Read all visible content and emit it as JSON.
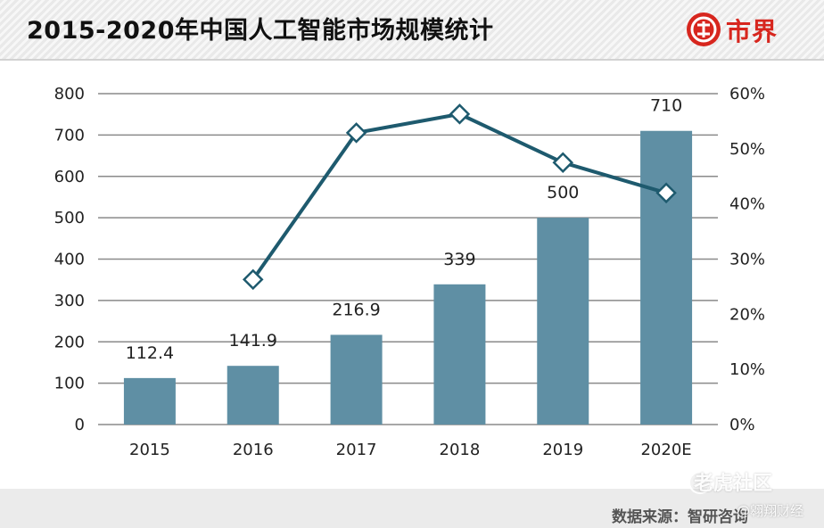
{
  "header": {
    "title": "2015-2020年中国人工智能市场规模统计",
    "logo_text": "市界",
    "logo_icon": "shijie-logo-icon"
  },
  "chart_data": {
    "type": "bar",
    "categories": [
      "2015",
      "2016",
      "2017",
      "2018",
      "2019",
      "2020E"
    ],
    "series": [
      {
        "type": "bar",
        "values": [
          112.4,
          141.9,
          216.9,
          339,
          500,
          710
        ],
        "data_labels": [
          "112.4",
          "141.9",
          "216.9",
          "339",
          "500",
          "710"
        ],
        "axis": "left"
      },
      {
        "type": "line",
        "values": [
          null,
          26.3,
          52.9,
          56.3,
          47.5,
          42.0
        ],
        "unit": "%",
        "axis": "right",
        "marker": "diamond"
      }
    ],
    "ylim": [
      0,
      800
    ],
    "y_ticks": [
      "0",
      "100",
      "200",
      "300",
      "400",
      "500",
      "600",
      "700",
      "800"
    ],
    "y2lim": [
      0,
      60
    ],
    "y2_ticks": [
      "0%",
      "10%",
      "20%",
      "30%",
      "40%",
      "50%",
      "60%"
    ],
    "grid": true,
    "legend": false,
    "colors": {
      "bar": "#5f8fa4",
      "line": "#1e5a6e",
      "grid": "#8a8a8a"
    }
  },
  "footer": {
    "source": "数据来源：智研咨询",
    "watermark_community": "老虎社区",
    "watermark_author": "@翱翔财经"
  }
}
